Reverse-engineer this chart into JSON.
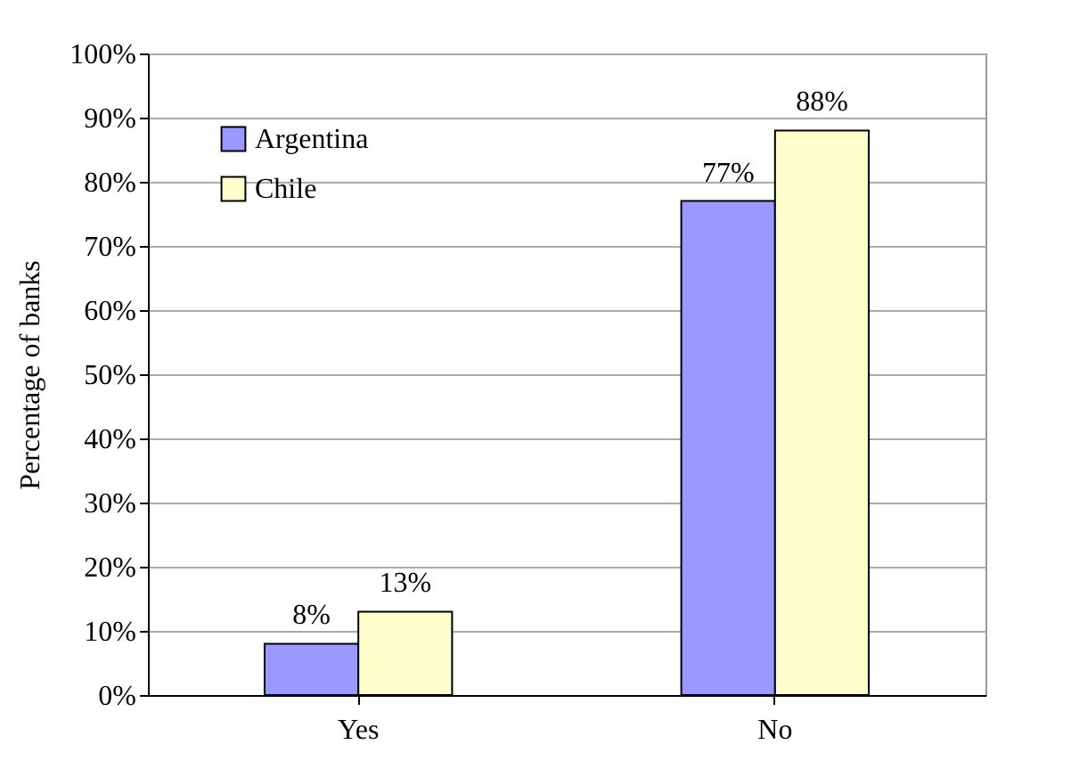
{
  "chart_data": {
    "type": "bar",
    "ylabel": "Percentage of banks",
    "categories": [
      "Yes",
      "No"
    ],
    "series": [
      {
        "name": "Argentina",
        "color": "#9999ff",
        "values": [
          8,
          77
        ],
        "value_labels": [
          "8%",
          "77%"
        ]
      },
      {
        "name": "Chile",
        "color": "#ffffcc",
        "values": [
          13,
          88
        ],
        "value_labels": [
          "13%",
          "88%"
        ]
      }
    ],
    "ylim": [
      0,
      100
    ],
    "yticks": [
      {
        "value": 0,
        "label": "0%"
      },
      {
        "value": 10,
        "label": "10%"
      },
      {
        "value": 20,
        "label": "20%"
      },
      {
        "value": 30,
        "label": "30%"
      },
      {
        "value": 40,
        "label": "40%"
      },
      {
        "value": 50,
        "label": "50%"
      },
      {
        "value": 60,
        "label": "60%"
      },
      {
        "value": 70,
        "label": "70%"
      },
      {
        "value": 80,
        "label": "80%"
      },
      {
        "value": 90,
        "label": "90%"
      },
      {
        "value": 100,
        "label": "100%"
      }
    ],
    "grid": "y",
    "legend": "top left"
  }
}
